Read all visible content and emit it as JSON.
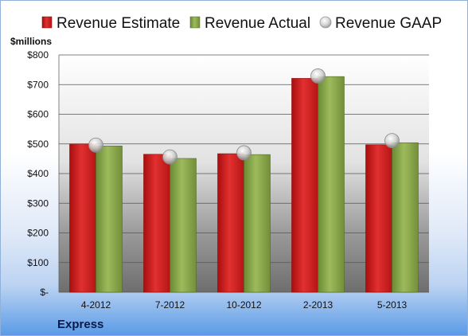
{
  "chart_data": {
    "type": "bar",
    "categories": [
      "4-2012",
      "7-2012",
      "10-2012",
      "2-2013",
      "5-2013"
    ],
    "series": [
      {
        "name": "Revenue Estimate",
        "values": [
          500,
          465,
          467,
          721,
          497
        ],
        "color": "#d42020"
      },
      {
        "name": "Revenue Actual",
        "values": [
          493,
          451,
          464,
          727,
          504
        ],
        "color": "#8aa84a"
      },
      {
        "name": "Revenue GAAP",
        "type": "marker",
        "values": [
          496,
          456,
          470,
          729,
          511
        ],
        "color": "#c9c9c9"
      }
    ],
    "ylabel": "$millions",
    "ylim": [
      0,
      800
    ],
    "yticks": [
      0,
      100,
      200,
      300,
      400,
      500,
      600,
      700,
      800
    ],
    "ytick_labels": [
      "$-",
      "$100",
      "$200",
      "$300",
      "$400",
      "$500",
      "$600",
      "$700",
      "$800"
    ],
    "grid": true,
    "legend": "top",
    "footer": "Express"
  }
}
